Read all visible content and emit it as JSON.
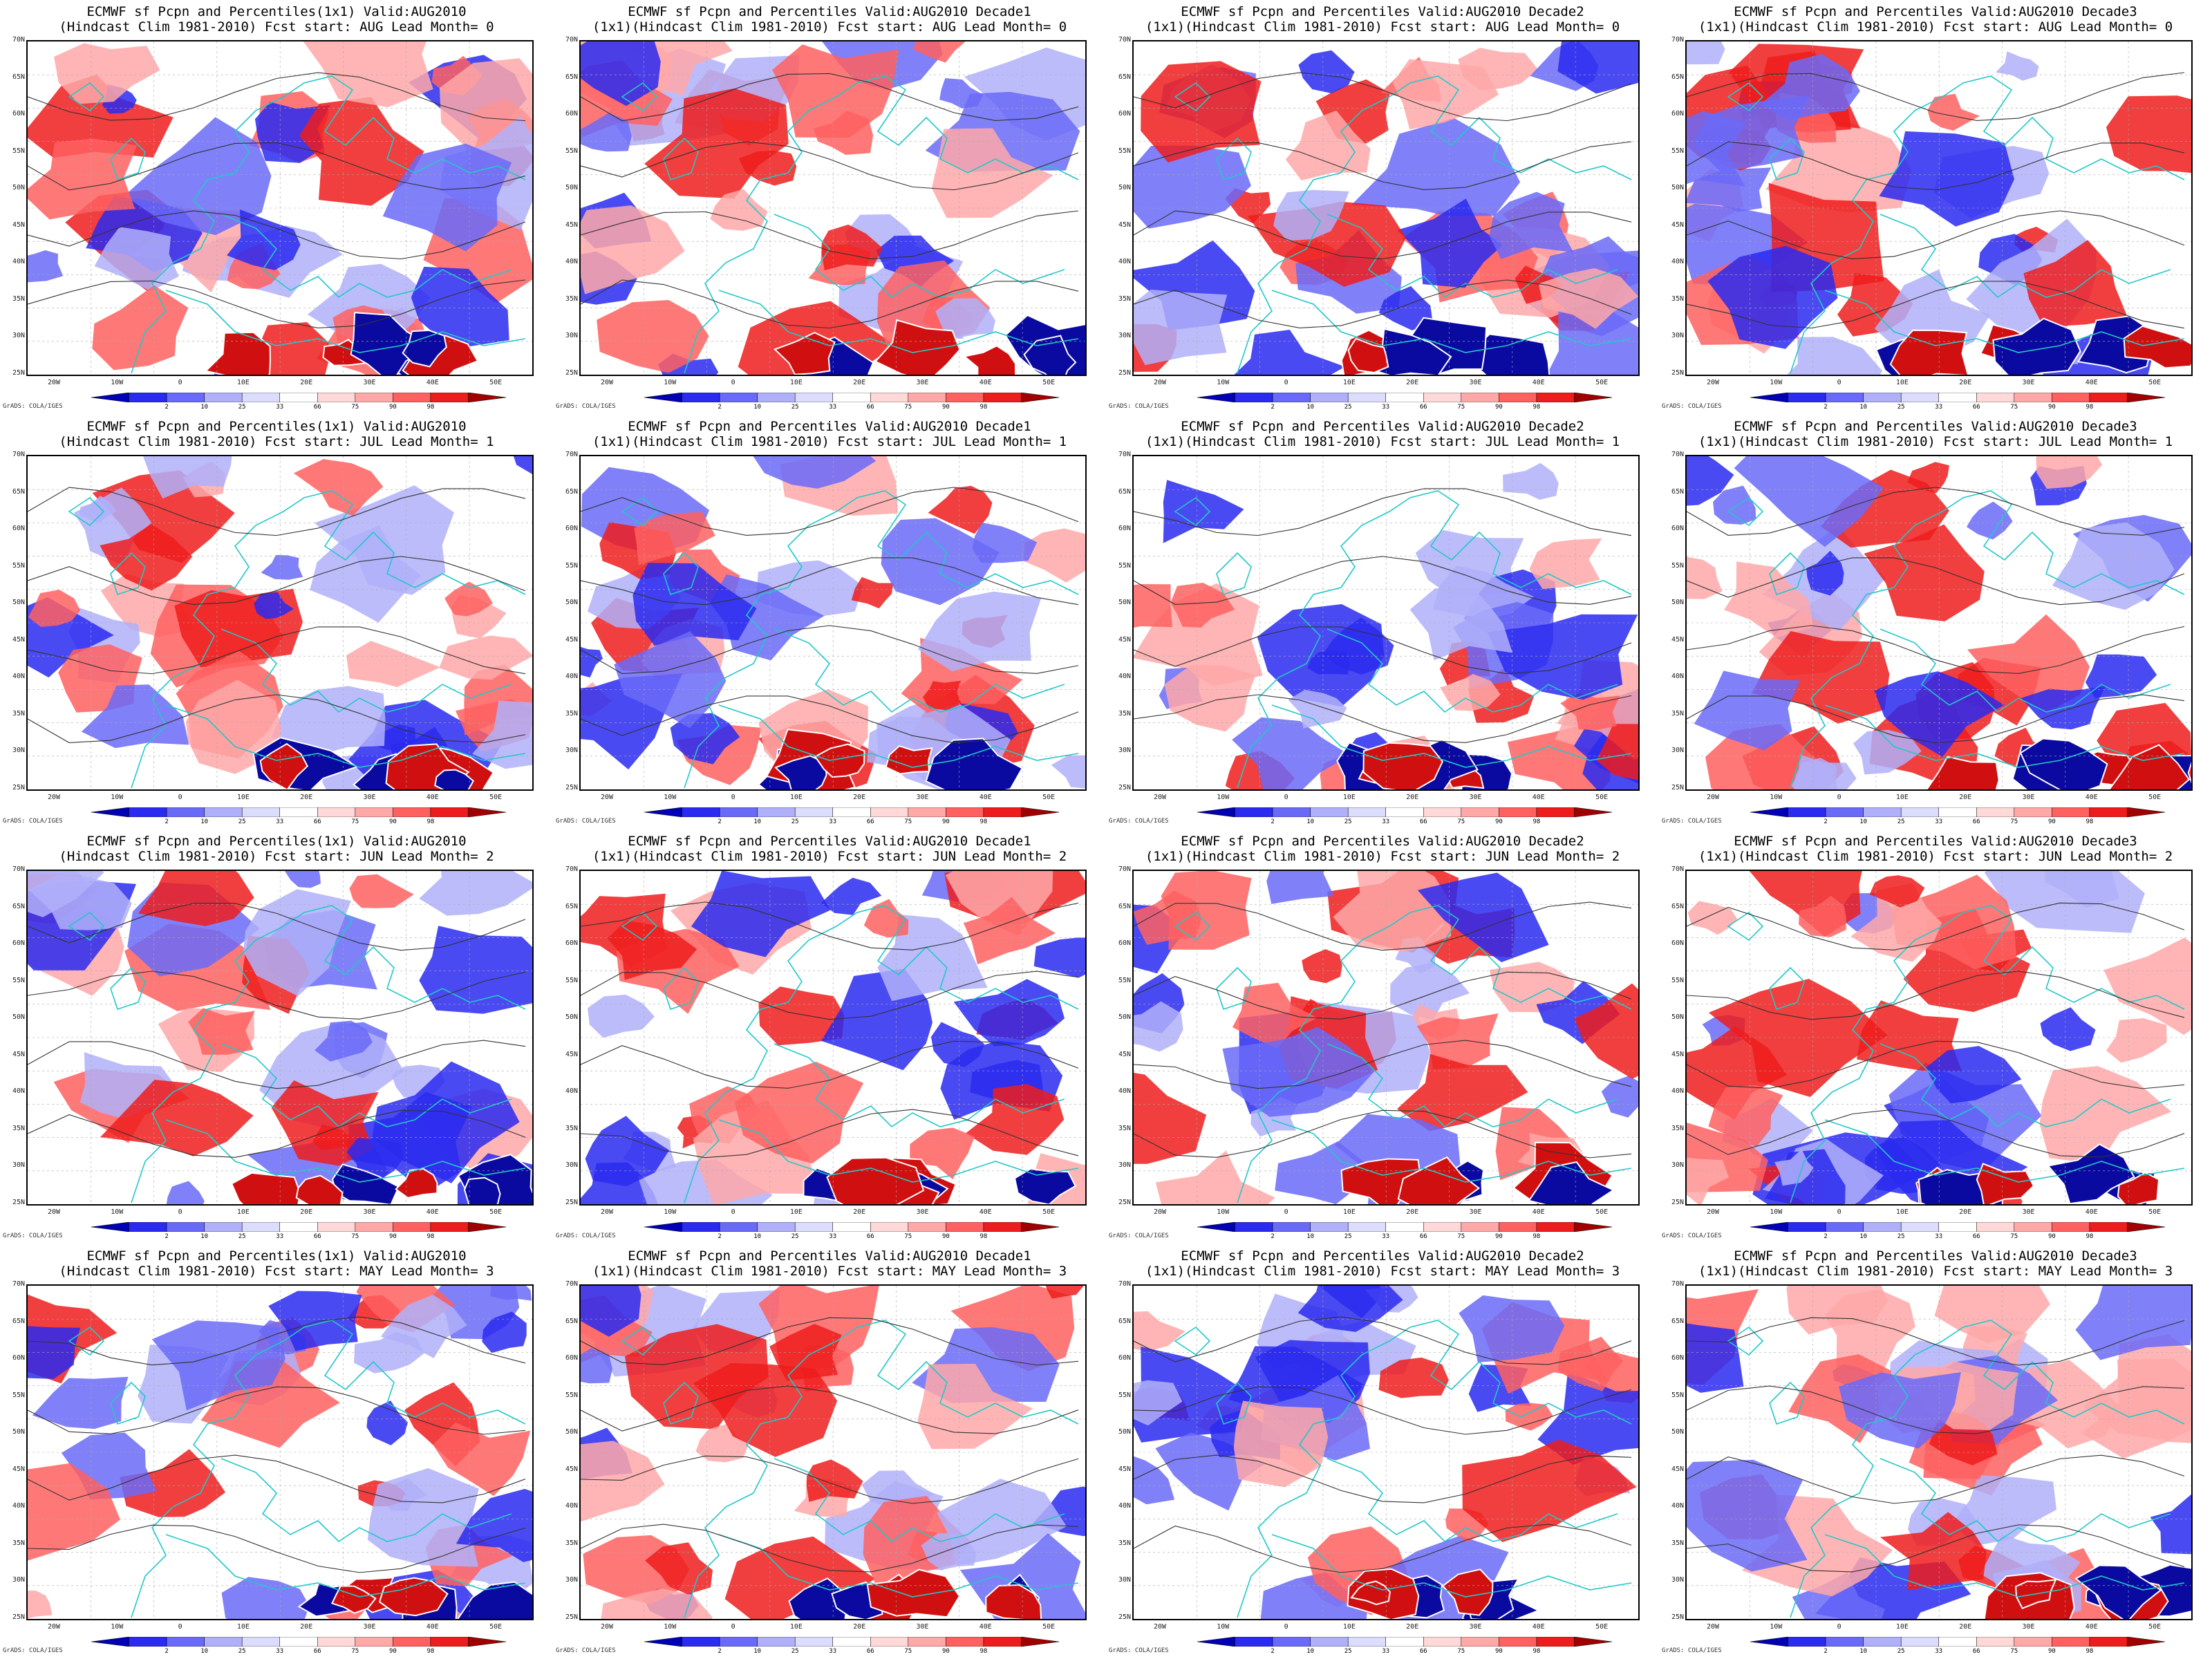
{
  "figure": {
    "panels": [
      {
        "title1": "ECMWF sf Pcpn and Percentiles(1x1) Valid:AUG2010",
        "title2": "(Hindcast Clim 1981-2010) Fcst start: AUG  Lead Month= 0"
      },
      {
        "title1": "ECMWF sf Pcpn and Percentiles Valid:AUG2010 Decade1",
        "title2": "(1x1)(Hindcast Clim 1981-2010) Fcst start: AUG  Lead Month= 0"
      },
      {
        "title1": "ECMWF sf Pcpn and Percentiles Valid:AUG2010 Decade2",
        "title2": "(1x1)(Hindcast Clim 1981-2010) Fcst start: AUG  Lead Month= 0"
      },
      {
        "title1": "ECMWF sf Pcpn and Percentiles Valid:AUG2010 Decade3",
        "title2": "(1x1)(Hindcast Clim 1981-2010) Fcst start: AUG  Lead Month= 0"
      },
      {
        "title1": "ECMWF sf Pcpn and Percentiles(1x1) Valid:AUG2010",
        "title2": "(Hindcast Clim 1981-2010) Fcst start: JUL  Lead Month= 1"
      },
      {
        "title1": "ECMWF sf Pcpn and Percentiles Valid:AUG2010 Decade1",
        "title2": "(1x1)(Hindcast Clim 1981-2010) Fcst start: JUL  Lead Month= 1"
      },
      {
        "title1": "ECMWF sf Pcpn and Percentiles Valid:AUG2010 Decade2",
        "title2": "(1x1)(Hindcast Clim 1981-2010) Fcst start: JUL  Lead Month= 1"
      },
      {
        "title1": "ECMWF sf Pcpn and Percentiles Valid:AUG2010 Decade3",
        "title2": "(1x1)(Hindcast Clim 1981-2010) Fcst start: JUL  Lead Month= 1"
      },
      {
        "title1": "ECMWF sf Pcpn and Percentiles(1x1) Valid:AUG2010",
        "title2": "(Hindcast Clim 1981-2010) Fcst start: JUN  Lead Month= 2"
      },
      {
        "title1": "ECMWF sf Pcpn and Percentiles Valid:AUG2010 Decade1",
        "title2": "(1x1)(Hindcast Clim 1981-2010) Fcst start: JUN  Lead Month= 2"
      },
      {
        "title1": "ECMWF sf Pcpn and Percentiles Valid:AUG2010 Decade2",
        "title2": "(1x1)(Hindcast Clim 1981-2010) Fcst start: JUN  Lead Month= 2"
      },
      {
        "title1": "ECMWF sf Pcpn and Percentiles Valid:AUG2010 Decade3",
        "title2": "(1x1)(Hindcast Clim 1981-2010) Fcst start: JUN  Lead Month= 2"
      },
      {
        "title1": "ECMWF sf Pcpn and Percentiles(1x1) Valid:AUG2010",
        "title2": "(Hindcast Clim 1981-2010) Fcst start: MAY  Lead Month= 3"
      },
      {
        "title1": "ECMWF sf Pcpn and Percentiles Valid:AUG2010 Decade1",
        "title2": "(1x1)(Hindcast Clim 1981-2010) Fcst start: MAY  Lead Month= 3"
      },
      {
        "title1": "ECMWF sf Pcpn and Percentiles Valid:AUG2010 Decade2",
        "title2": "(1x1)(Hindcast Clim 1981-2010) Fcst start: MAY  Lead Month= 3"
      },
      {
        "title1": "ECMWF sf Pcpn and Percentiles Valid:AUG2010 Decade3",
        "title2": "(1x1)(Hindcast Clim 1981-2010) Fcst start: MAY  Lead Month= 3"
      }
    ],
    "lat_labels": [
      "70N",
      "65N",
      "60N",
      "55N",
      "50N",
      "45N",
      "40N",
      "35N",
      "30N",
      "25N"
    ],
    "lon_labels": [
      "20W",
      "10W",
      "0",
      "10E",
      "20E",
      "30E",
      "40E",
      "50E"
    ],
    "colorbar_labels": [
      "2",
      "10",
      "25",
      "33",
      "66",
      "75",
      "90",
      "98"
    ],
    "colorbar_colors": [
      "#0000b4",
      "#2a2af0",
      "#6a6af8",
      "#b0b0fa",
      "#dcdcfc",
      "#ffffff",
      "#ffd8d8",
      "#ffa8a8",
      "#ff6060",
      "#ee1c1c",
      "#a00000"
    ],
    "credit": "GrADS: COLA/IGES",
    "colors": {
      "coast": "#22c8c8",
      "contour": "#333333",
      "dry": "#0a0aa0",
      "wet": "#d01010"
    }
  }
}
